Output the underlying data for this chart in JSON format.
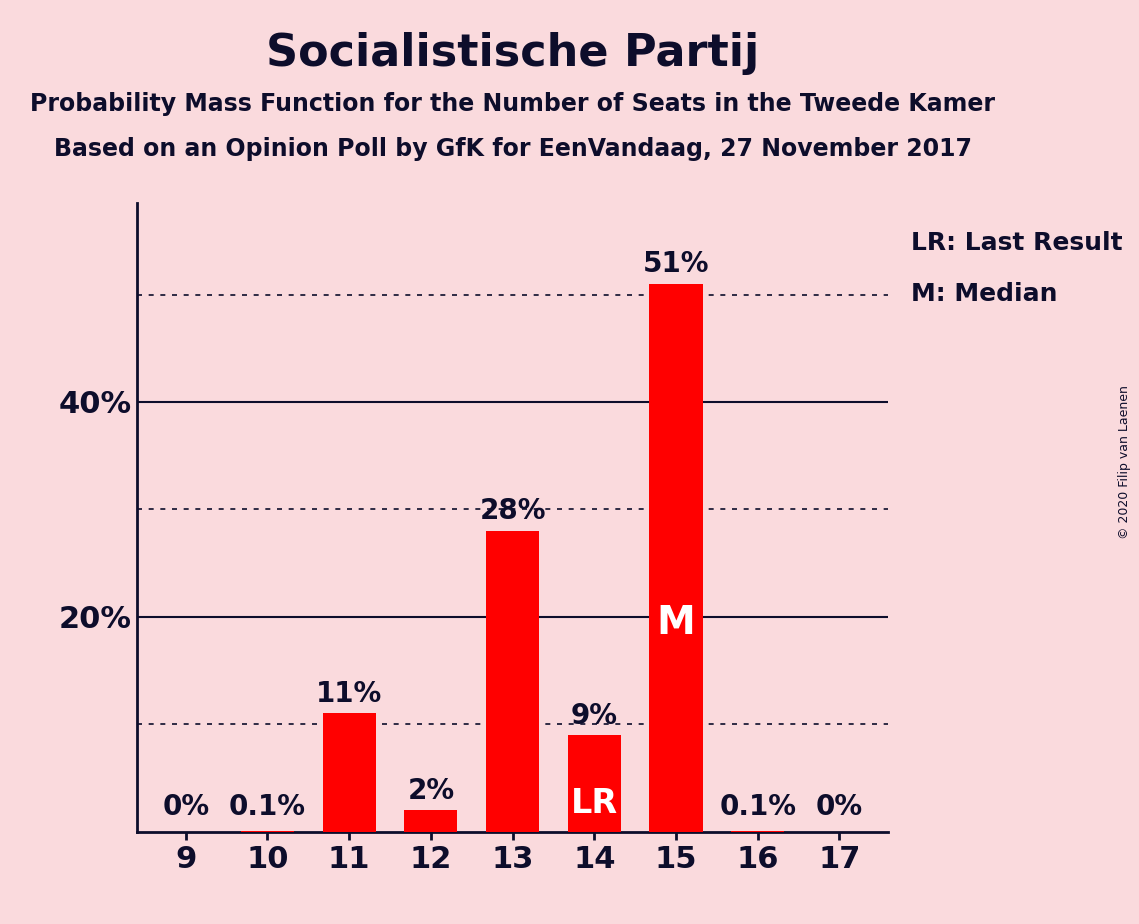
{
  "title": "Socialistische Partij",
  "subtitle1": "Probability Mass Function for the Number of Seats in the Tweede Kamer",
  "subtitle2": "Based on an Opinion Poll by GfK for EenVandaag, 27 November 2017",
  "copyright": "© 2020 Filip van Laenen",
  "categories": [
    9,
    10,
    11,
    12,
    13,
    14,
    15,
    16,
    17
  ],
  "values": [
    0.0,
    0.001,
    0.11,
    0.02,
    0.28,
    0.09,
    0.51,
    0.001,
    0.0
  ],
  "bar_labels": [
    "0%",
    "0.1%",
    "11%",
    "2%",
    "28%",
    "9%",
    "51%",
    "0.1%",
    "0%"
  ],
  "bar_color": "#FF0000",
  "background_color": "#FADADD",
  "text_color": "#0D0D2B",
  "lr_index": 5,
  "median_index": 6,
  "lr_label": "LR",
  "median_label": "M",
  "legend_lr": "LR: Last Result",
  "legend_m": "M: Median",
  "ylim": [
    0,
    0.585
  ],
  "ytick_solid": [
    0.2,
    0.4
  ],
  "ytick_dotted": [
    0.1,
    0.3,
    0.5
  ],
  "ytick_label_values": [
    0.2,
    0.4
  ],
  "ytick_labels": [
    "20%",
    "40%"
  ],
  "title_fontsize": 32,
  "subtitle_fontsize": 17,
  "bar_label_fontsize": 20,
  "axis_label_fontsize": 22,
  "inbar_label_fontsize": 24,
  "legend_fontsize": 18
}
